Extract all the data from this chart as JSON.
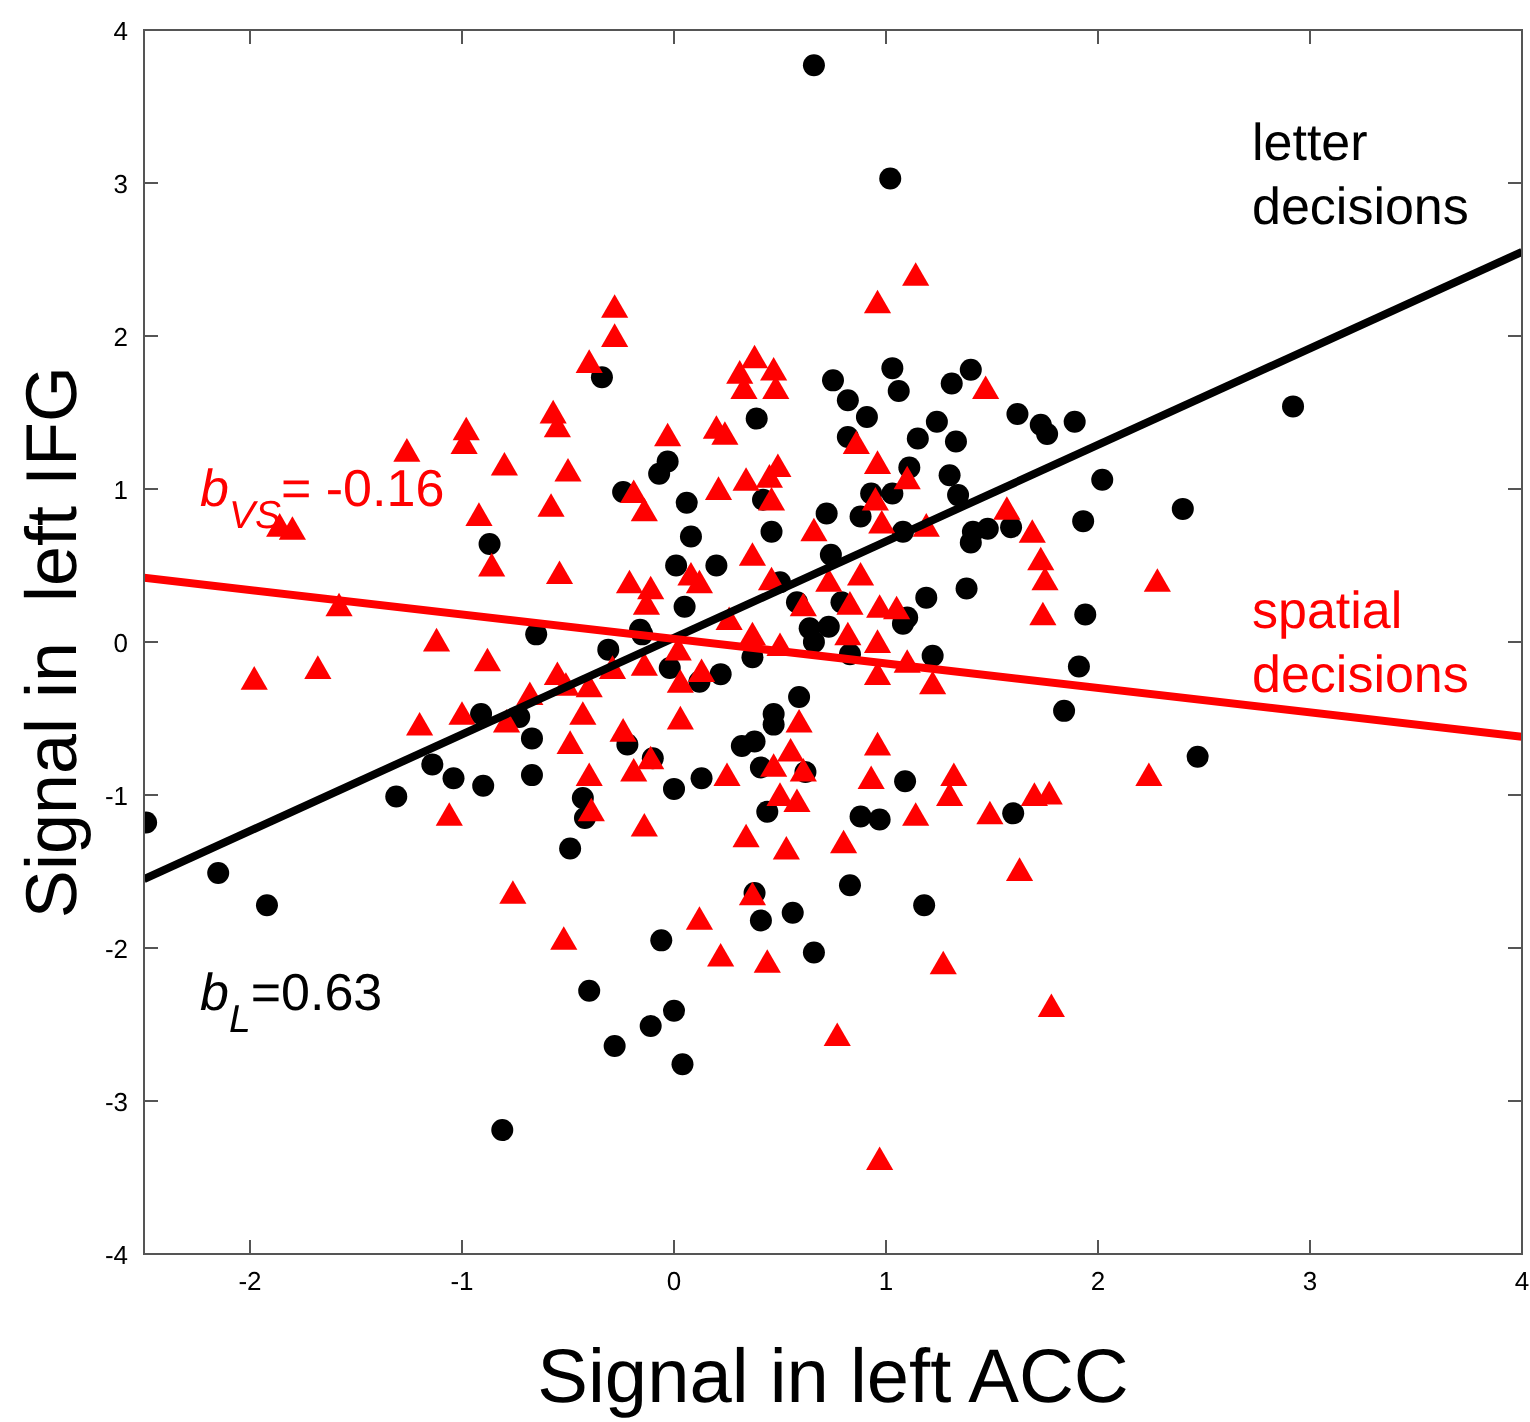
{
  "chart_data": {
    "type": "scatter",
    "xlabel": "Signal in left ACC",
    "ylabel": "Signal in  left IFG",
    "xlim": [
      -2.5,
      4
    ],
    "ylim": [
      -4,
      4
    ],
    "xticks": [
      -2,
      -1,
      0,
      1,
      2,
      3,
      4
    ],
    "yticks": [
      -4,
      -3,
      -2,
      -1,
      0,
      1,
      2,
      3,
      4
    ],
    "grid": false,
    "legend": false,
    "annotations": [
      "b$_{L}$=0.63",
      "b$_{VS}$= -0.16"
    ],
    "series": [
      {
        "name": "letter decisions",
        "color": "#000000",
        "marker": "circle",
        "x": [
          -2.49,
          -2.15,
          -1.92,
          -1.31,
          -1.14,
          -1.04,
          -0.9,
          -0.91,
          -0.73,
          -0.67,
          -0.67,
          -0.65,
          -0.43,
          -0.42,
          -0.49,
          -0.4,
          -0.81,
          -0.87,
          -0.34,
          0.66,
          1.02,
          0.39,
          0.75,
          0.82,
          0.91,
          0.82,
          1.03,
          1.06,
          1.4,
          1.31,
          1.62,
          1.73,
          1.76,
          1.24,
          1.33,
          1.15,
          1.11,
          1.3,
          1.34,
          0.93,
          1.03,
          0.88,
          1.08,
          1.41,
          1.48,
          1.59,
          1.4,
          1.38,
          1.19,
          1.1,
          0.72,
          0.74,
          0.46,
          0.42,
          0.06,
          0.08,
          -0.07,
          -0.03,
          -0.24,
          0.01,
          0.2,
          0.05,
          0.5,
          0.58,
          0.79,
          0.64,
          0.73,
          -0.16,
          -0.31,
          -0.15,
          -0.02,
          0.12,
          0.22,
          0.37,
          0.66,
          0.83,
          1.08,
          1.22,
          0.47,
          0.47,
          0.59,
          0.32,
          0.38,
          0.41,
          0.62,
          0.44,
          0.0,
          0.13,
          -0.1,
          -0.22,
          0.88,
          0.97,
          1.09,
          0.83,
          1.18,
          0.38,
          0.41,
          0.56,
          0.66,
          -0.06,
          -0.28,
          -0.11,
          0.0,
          0.04,
          1.6,
          1.84,
          1.89,
          2.02,
          1.93,
          2.4,
          2.92,
          1.94,
          1.91,
          2.47
        ],
        "values": [
          -1.18,
          -1.51,
          -1.72,
          -1.01,
          -0.8,
          -0.89,
          -0.94,
          -0.47,
          -0.49,
          -0.63,
          -0.87,
          0.05,
          -1.02,
          -1.15,
          -1.35,
          -2.28,
          -3.19,
          0.64,
          1.73,
          3.77,
          3.03,
          1.46,
          1.71,
          1.58,
          1.47,
          1.34,
          1.79,
          1.64,
          1.78,
          1.69,
          1.49,
          1.42,
          1.36,
          1.44,
          1.31,
          1.33,
          1.14,
          1.09,
          0.96,
          0.97,
          0.97,
          0.82,
          0.72,
          0.72,
          0.74,
          0.75,
          0.65,
          0.35,
          0.29,
          0.16,
          0.84,
          0.57,
          0.72,
          0.93,
          0.91,
          0.69,
          1.1,
          1.18,
          0.98,
          0.5,
          0.5,
          0.23,
          0.39,
          0.26,
          0.26,
          0.09,
          0.1,
          0.08,
          -0.05,
          0.05,
          -0.17,
          -0.26,
          -0.21,
          -0.1,
          0.0,
          -0.08,
          0.12,
          -0.09,
          -0.47,
          -0.54,
          -0.36,
          -0.68,
          -0.65,
          -0.82,
          -0.85,
          -1.11,
          -0.96,
          -0.89,
          -0.76,
          -0.67,
          -1.14,
          -1.16,
          -0.91,
          -1.59,
          -1.72,
          -1.64,
          -1.82,
          -1.77,
          -2.03,
          -1.95,
          -2.64,
          -2.51,
          -2.41,
          -2.76,
          -1.12,
          -0.45,
          1.44,
          1.06,
          0.79,
          0.87,
          1.54,
          0.18,
          -0.16,
          -0.75
        ]
      },
      {
        "name": "spatial decisions",
        "color": "#ff0000",
        "marker": "triangle",
        "x": [
          -1.86,
          -1.8,
          -1.58,
          -1.26,
          -0.99,
          -0.98,
          -0.8,
          -0.92,
          -0.86,
          -0.57,
          -0.55,
          -0.5,
          -0.58,
          -0.54,
          -0.4,
          -1.98,
          -1.68,
          -1.12,
          -1.2,
          -1.0,
          -0.88,
          -0.79,
          -0.68,
          -0.55,
          -0.51,
          -0.4,
          -0.43,
          -0.49,
          -0.4,
          -0.39,
          -1.06,
          -0.76,
          -0.52,
          -0.28,
          -0.28,
          0.96,
          1.14,
          0.38,
          0.31,
          0.33,
          0.47,
          0.48,
          1.47,
          -0.03,
          0.2,
          0.24,
          0.21,
          0.34,
          0.49,
          0.45,
          0.46,
          -0.19,
          -0.14,
          0.86,
          0.96,
          1.1,
          0.95,
          0.98,
          1.19,
          1.57,
          1.69,
          1.73,
          1.75,
          1.74,
          0.66,
          0.37,
          0.46,
          0.73,
          0.88,
          0.83,
          0.97,
          1.05,
          0.61,
          -0.21,
          -0.11,
          -0.13,
          0.08,
          0.12,
          0.26,
          0.37,
          0.5,
          0.82,
          0.96,
          0.96,
          1.1,
          1.22,
          0.02,
          0.03,
          0.13,
          -0.14,
          -0.29,
          0.03,
          -0.24,
          -0.19,
          -0.11,
          -0.14,
          0.25,
          0.34,
          0.53,
          0.59,
          0.55,
          0.47,
          0.61,
          0.5,
          0.58,
          0.37,
          0.12,
          0.22,
          0.44,
          0.8,
          0.93,
          0.96,
          1.14,
          1.32,
          1.3,
          1.49,
          1.7,
          1.77,
          1.63,
          1.27,
          0.77,
          0.97,
          1.78,
          2.24,
          2.28
        ],
        "values": [
          0.74,
          0.72,
          0.22,
          1.23,
          1.28,
          1.37,
          1.14,
          0.81,
          0.48,
          1.48,
          1.39,
          1.1,
          0.87,
          0.43,
          1.81,
          -0.26,
          -0.19,
          -0.01,
          -0.56,
          -0.49,
          -0.14,
          -0.54,
          -0.36,
          -0.23,
          -0.3,
          -0.31,
          -0.49,
          -0.68,
          -0.89,
          -1.12,
          -1.15,
          -1.66,
          -1.96,
          2.17,
          1.98,
          2.2,
          2.38,
          1.84,
          1.74,
          1.64,
          1.76,
          1.64,
          1.64,
          1.33,
          1.38,
          1.34,
          0.98,
          1.04,
          1.13,
          1.06,
          0.91,
          0.96,
          0.84,
          1.28,
          1.15,
          1.05,
          0.91,
          0.76,
          0.74,
          0.85,
          0.7,
          0.52,
          0.39,
          0.16,
          0.71,
          0.55,
          0.39,
          0.38,
          0.42,
          0.23,
          0.21,
          0.2,
          0.22,
          0.37,
          0.33,
          0.23,
          0.42,
          0.37,
          0.13,
          0.03,
          -0.04,
          0.03,
          -0.02,
          -0.23,
          -0.15,
          -0.29,
          -0.07,
          -0.28,
          -0.21,
          -0.17,
          -0.19,
          -0.52,
          -0.6,
          -0.86,
          -0.78,
          -1.22,
          -0.89,
          -1.29,
          -1.37,
          -0.54,
          -0.73,
          -0.83,
          -0.86,
          -1.02,
          -1.06,
          -1.67,
          -1.83,
          -2.07,
          -2.11,
          -1.33,
          -0.91,
          -0.69,
          -1.15,
          -0.89,
          -1.02,
          -1.14,
          -1.02,
          -1.01,
          -1.51,
          -2.12,
          -2.59,
          -3.4,
          -2.4,
          -0.89,
          0.38
        ]
      },
      {
        "type": "line",
        "color": "#000000",
        "x": [
          -2.5,
          4
        ],
        "values": [
          -1.55,
          2.55
        ]
      },
      {
        "type": "line",
        "color": "#ff0000",
        "x": [
          -2.5,
          4
        ],
        "values": [
          0.42,
          -0.62
        ]
      }
    ]
  }
}
